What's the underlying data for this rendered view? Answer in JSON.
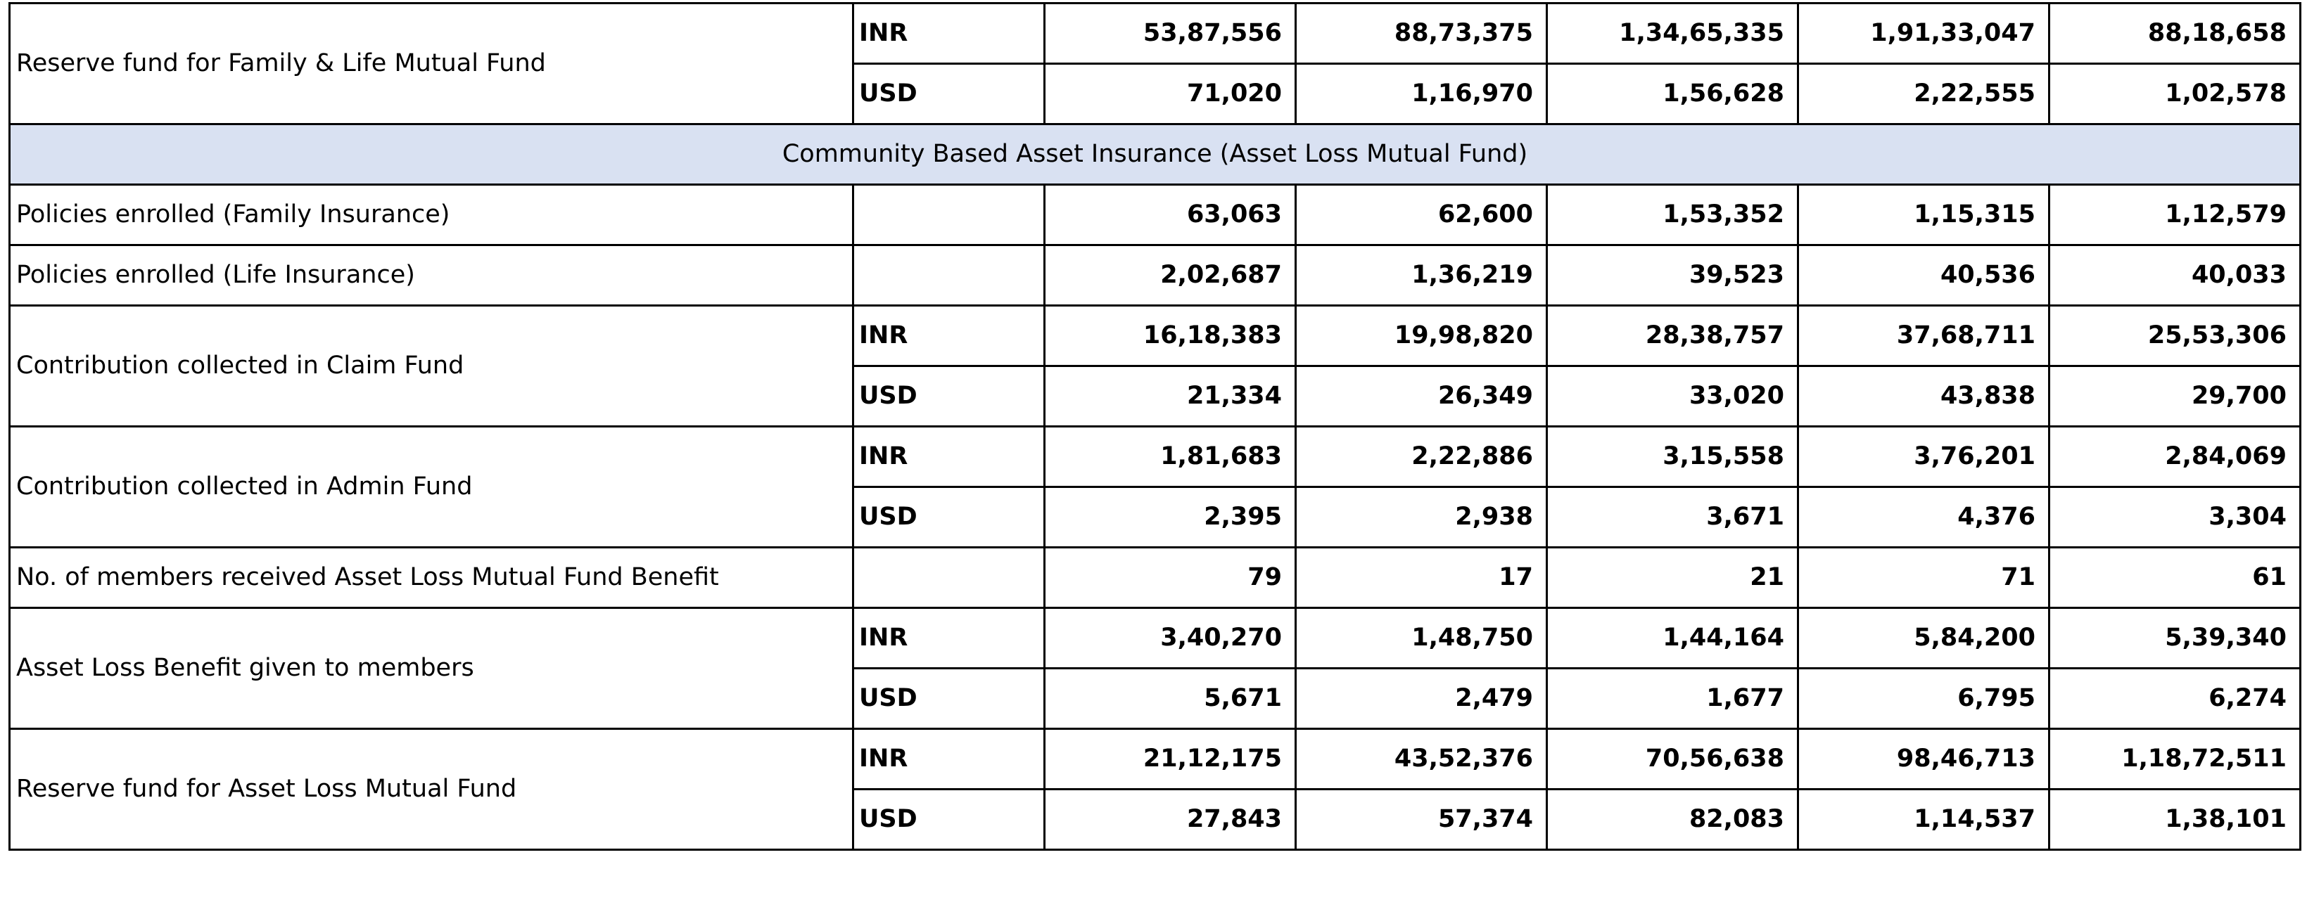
{
  "table": {
    "rows_before": [
      {
        "label": "Reserve fund for Family & Life Mutual Fund",
        "sub": [
          {
            "currency": "INR",
            "values": [
              "53,87,556",
              "88,73,375",
              "1,34,65,335",
              "1,91,33,047",
              "88,18,658"
            ]
          },
          {
            "currency": "USD",
            "values": [
              "71,020",
              "1,16,970",
              "1,56,628",
              "2,22,555",
              "1,02,578"
            ]
          }
        ]
      }
    ],
    "section_title": "Community Based Asset Insurance (Asset Loss Mutual Fund)",
    "rows_after": [
      {
        "label": "Policies enrolled (Family Insurance)",
        "sub": [
          {
            "currency": "",
            "values": [
              "63,063",
              "62,600",
              "1,53,352",
              "1,15,315",
              "1,12,579"
            ]
          }
        ]
      },
      {
        "label": "Policies enrolled (Life Insurance)",
        "sub": [
          {
            "currency": "",
            "values": [
              "2,02,687",
              "1,36,219",
              "39,523",
              "40,536",
              "40,033"
            ]
          }
        ]
      },
      {
        "label": "Contribution collected in Claim Fund",
        "sub": [
          {
            "currency": "INR",
            "values": [
              "16,18,383",
              "19,98,820",
              "28,38,757",
              "37,68,711",
              "25,53,306"
            ]
          },
          {
            "currency": "USD",
            "values": [
              "21,334",
              "26,349",
              "33,020",
              "43,838",
              "29,700"
            ]
          }
        ]
      },
      {
        "label": "Contribution collected in Admin Fund",
        "sub": [
          {
            "currency": "INR",
            "values": [
              "1,81,683",
              "2,22,886",
              "3,15,558",
              "3,76,201",
              "2,84,069"
            ]
          },
          {
            "currency": "USD",
            "values": [
              "2,395",
              "2,938",
              "3,671",
              "4,376",
              "3,304"
            ]
          }
        ]
      },
      {
        "label": "No. of members received Asset Loss Mutual Fund Benefit",
        "sub": [
          {
            "currency": "",
            "values": [
              "79",
              "17",
              "21",
              "71",
              "61"
            ]
          }
        ]
      },
      {
        "label": "Asset Loss Benefit given to members",
        "sub": [
          {
            "currency": "INR",
            "values": [
              "3,40,270",
              "1,48,750",
              "1,44,164",
              "5,84,200",
              "5,39,340"
            ]
          },
          {
            "currency": "USD",
            "values": [
              "5,671",
              "2,479",
              "1,677",
              "6,795",
              "6,274"
            ]
          }
        ]
      },
      {
        "label": "Reserve fund for Asset Loss Mutual Fund",
        "sub": [
          {
            "currency": "INR",
            "values": [
              "21,12,175",
              "43,52,376",
              "70,56,638",
              "98,46,713",
              "1,18,72,511"
            ]
          },
          {
            "currency": "USD",
            "values": [
              "27,843",
              "57,374",
              "82,083",
              "1,14,537",
              "1,38,101"
            ]
          }
        ]
      }
    ]
  }
}
